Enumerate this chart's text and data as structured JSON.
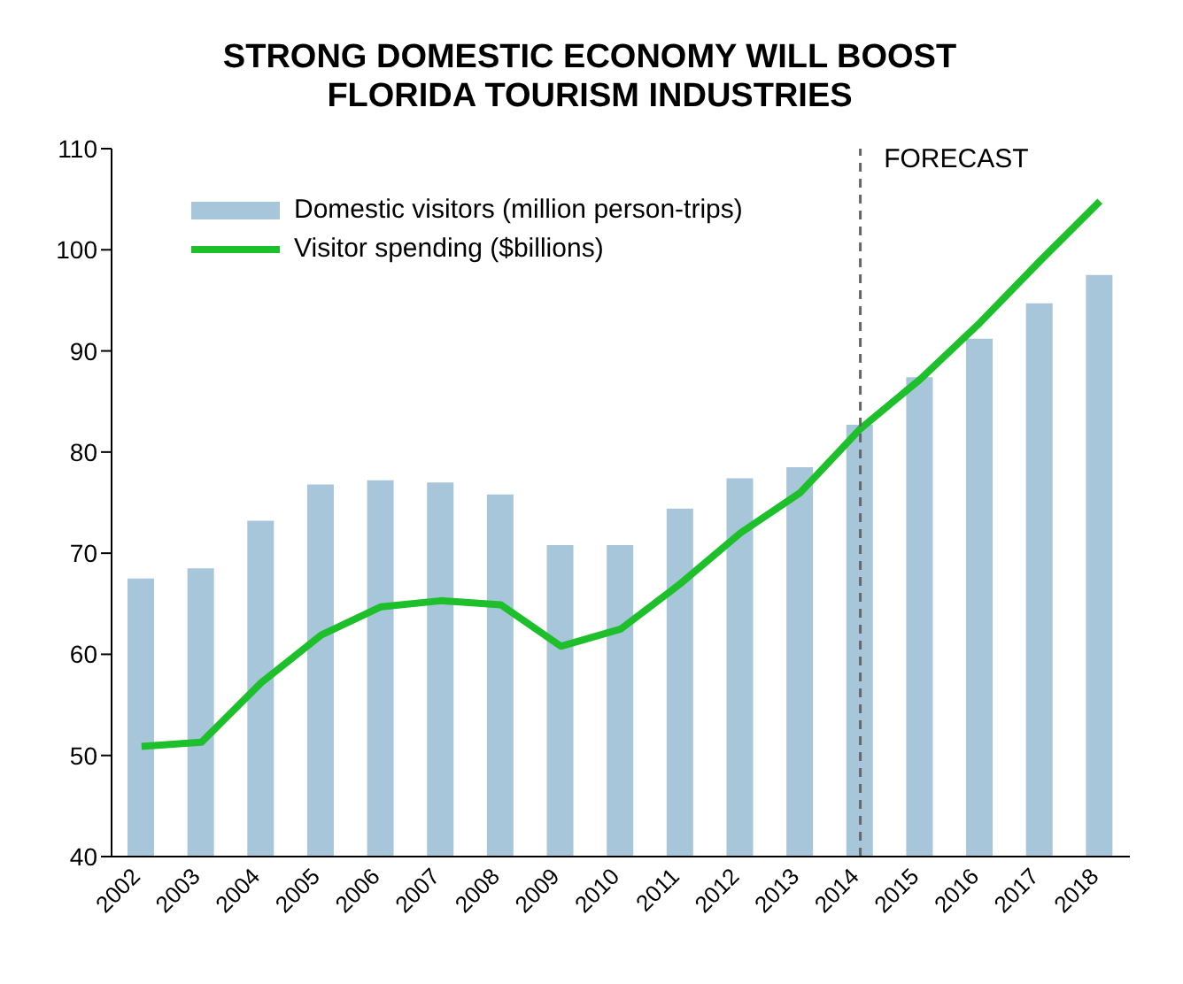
{
  "chart_data": {
    "type": "bar",
    "title": "STRONG DOMESTIC ECONOMY WILL BOOST\nFLORIDA TOURISM INDUSTRIES",
    "categories": [
      "2002",
      "2003",
      "2004",
      "2005",
      "2006",
      "2007",
      "2008",
      "2009",
      "2010",
      "2011",
      "2012",
      "2013",
      "2014",
      "2015",
      "2016",
      "2017",
      "2018"
    ],
    "series": [
      {
        "name": "Domestic visitors (million person-trips)",
        "color": "#a7c6da",
        "values": [
          67.5,
          68.5,
          73.2,
          76.8,
          77.2,
          77,
          75.8,
          70.8,
          70.8,
          74.4,
          77.4,
          78.5,
          82.7,
          87.4,
          91.2,
          94.7,
          97.5
        ]
      },
      {
        "name": "Visitor spending ($billions)",
        "type": "line",
        "color": "#1dbf2b",
        "values": [
          50.9,
          51.3,
          57.2,
          61.9,
          64.7,
          65.3,
          64.9,
          60.8,
          62.5,
          67,
          72,
          76,
          82.3,
          87.2,
          92.8,
          98.9,
          104.8
        ]
      }
    ],
    "ylim": [
      40,
      110
    ],
    "yticks": [
      40,
      50,
      60,
      70,
      80,
      90,
      100,
      110
    ],
    "grid": false,
    "legend": "top left",
    "marker": "none",
    "line_style": "solid",
    "ref_lines": [
      {
        "axis": "x",
        "value": "2014",
        "label": "FORECAST",
        "color": "#666666",
        "line_style": "dashed"
      }
    ]
  }
}
